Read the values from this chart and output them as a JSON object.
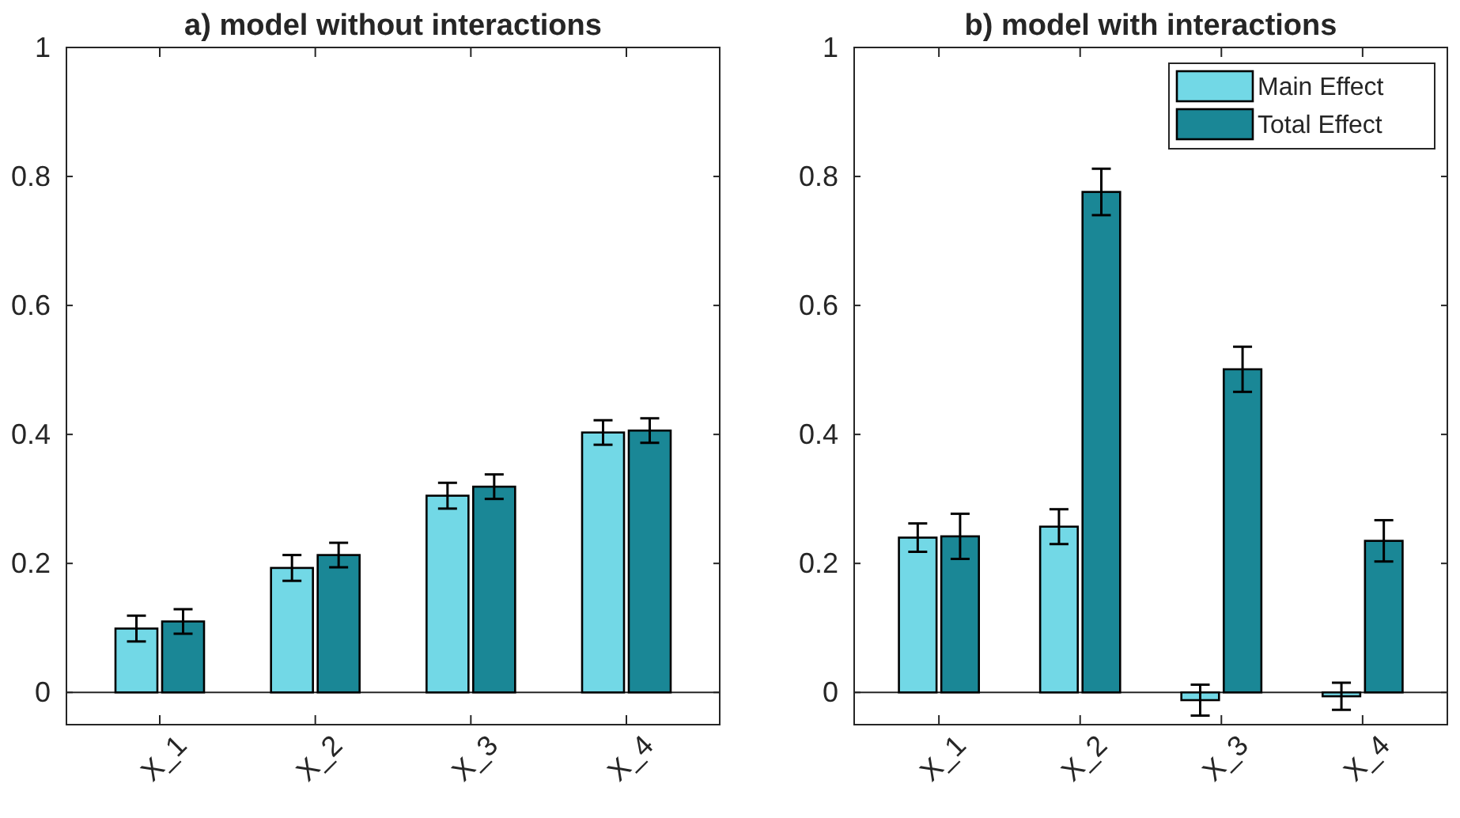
{
  "chart_data": [
    {
      "type": "bar",
      "title": "a) model without interactions",
      "categories": [
        "X_1",
        "X_2",
        "X_3",
        "X_4"
      ],
      "ylim": [
        -0.05,
        1
      ],
      "yticks": [
        0,
        0.2,
        0.4,
        0.6,
        0.8,
        1
      ],
      "grid": false,
      "legend": false,
      "ref_lines": [
        {
          "axis": "y",
          "value": 0
        }
      ],
      "series": [
        {
          "color": "#72d8e6",
          "values": [
            0.099,
            0.193,
            0.305,
            0.403
          ],
          "errors": [
            0.02,
            0.02,
            0.02,
            0.019
          ]
        },
        {
          "color": "#1a8796",
          "values": [
            0.11,
            0.213,
            0.319,
            0.406
          ],
          "errors": [
            0.019,
            0.019,
            0.019,
            0.019
          ]
        }
      ]
    },
    {
      "type": "bar",
      "title": "b) model with interactions",
      "categories": [
        "X_1",
        "X_2",
        "X_3",
        "X_4"
      ],
      "ylim": [
        -0.05,
        1
      ],
      "yticks": [
        0,
        0.2,
        0.4,
        0.6,
        0.8,
        1
      ],
      "grid": false,
      "legend": "top right",
      "ref_lines": [
        {
          "axis": "y",
          "value": 0
        }
      ],
      "series": [
        {
          "name": "Main Effect",
          "color": "#72d8e6",
          "values": [
            0.24,
            0.257,
            -0.012,
            -0.006
          ],
          "errors": [
            0.022,
            0.027,
            0.024,
            0.021
          ]
        },
        {
          "name": "Total Effect",
          "color": "#1a8796",
          "values": [
            0.242,
            0.776,
            0.501,
            0.235
          ],
          "errors": [
            0.035,
            0.036,
            0.035,
            0.032
          ]
        }
      ]
    }
  ]
}
